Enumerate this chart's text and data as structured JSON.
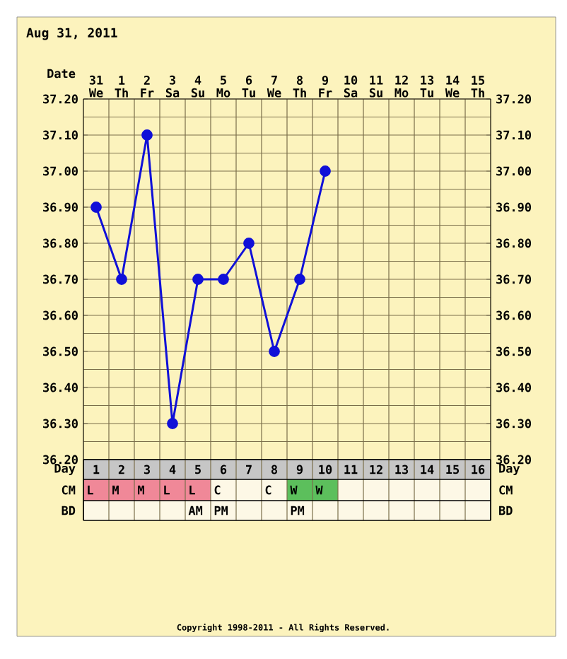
{
  "chart_data": [
    {
      "type": "line",
      "title": "Aug 31, 2011",
      "xlabel": "Date",
      "categories": [
        "31 We",
        "1 Th",
        "2 Fr",
        "3 Sa",
        "4 Su",
        "5 Mo",
        "6 Tu",
        "7 We",
        "8 Th",
        "9 Fr",
        "10 Sa",
        "11 Su",
        "12 Mo",
        "13 Tu",
        "14 We",
        "15 Th"
      ],
      "series": [
        {
          "color": "#1010d8",
          "values": [
            36.9,
            36.7,
            37.1,
            36.3,
            36.7,
            36.7,
            36.8,
            36.5,
            36.7,
            37.0,
            null,
            null,
            null,
            null,
            null,
            null
          ]
        }
      ],
      "ylim": [
        36.2,
        37.2
      ],
      "yticks": [
        {
          "value": 36.2,
          "label": "36.20"
        },
        {
          "value": 36.3,
          "label": "36.30"
        },
        {
          "value": 36.4,
          "label": "36.40"
        },
        {
          "value": 36.5,
          "label": "36.50"
        },
        {
          "value": 36.6,
          "label": "36.60"
        },
        {
          "value": 36.7,
          "label": "36.70"
        },
        {
          "value": 36.8,
          "label": "36.80"
        },
        {
          "value": 36.9,
          "label": "36.90"
        },
        {
          "value": 37.0,
          "label": "37.00"
        },
        {
          "value": 37.1,
          "label": "37.10"
        },
        {
          "value": 37.2,
          "label": "37.20"
        }
      ],
      "y2lim": [
        36.2,
        37.2
      ],
      "y2ticks": [
        {
          "value": 36.2,
          "label": "36.20"
        },
        {
          "value": 36.3,
          "label": "36.30"
        },
        {
          "value": 36.4,
          "label": "36.40"
        },
        {
          "value": 36.5,
          "label": "36.50"
        },
        {
          "value": 36.6,
          "label": "36.60"
        },
        {
          "value": 36.7,
          "label": "36.70"
        },
        {
          "value": 36.8,
          "label": "36.80"
        },
        {
          "value": 36.9,
          "label": "36.90"
        },
        {
          "value": 37.0,
          "label": "37.00"
        },
        {
          "value": 37.1,
          "label": "37.10"
        },
        {
          "value": 37.2,
          "label": "37.20"
        }
      ],
      "grid": true,
      "marker": "circle",
      "line_style": "solid"
    },
    {
      "type": "heatmap",
      "xlabel": "Day",
      "categories": [
        "1",
        "2",
        "3",
        "4",
        "5",
        "6",
        "7",
        "8",
        "9",
        "10",
        "11",
        "12",
        "13",
        "14",
        "15",
        "16"
      ],
      "y_categories": [
        "CM",
        "BD"
      ],
      "cells": [
        [
          null,
          null,
          null,
          null,
          null,
          null,
          null,
          null,
          null,
          null,
          null,
          null,
          null,
          null,
          null,
          null
        ],
        [
          null,
          null,
          null,
          null,
          null,
          null,
          null,
          null,
          null,
          null,
          null,
          null,
          null,
          null,
          null,
          null
        ]
      ],
      "cell_labels": [
        [
          "L",
          "M",
          "M",
          "L",
          "L",
          "C",
          null,
          "C",
          "W",
          "W",
          null,
          null,
          null,
          null,
          null,
          null
        ],
        [
          null,
          null,
          null,
          null,
          "AM",
          "PM",
          null,
          null,
          "PM",
          null,
          null,
          null,
          null,
          null,
          null,
          null
        ]
      ],
      "colors": [
        [
          "#f08898",
          "#f08898",
          "#f08898",
          "#f08898",
          "#f08898",
          "#fdf8e6",
          "#fdf8e6",
          "#fdf8e6",
          "#5cbf5c",
          "#5cbf5c",
          "#fdf8e6",
          "#fdf8e6",
          "#fdf8e6",
          "#fdf8e6",
          "#fdf8e6",
          "#fdf8e6"
        ],
        [
          "#fdf8e6",
          "#fdf8e6",
          "#fdf8e6",
          "#fdf8e6",
          "#fdf8e6",
          "#fdf8e6",
          "#fdf8e6",
          "#fdf8e6",
          "#fdf8e6",
          "#fdf8e6",
          "#fdf8e6",
          "#fdf8e6",
          "#fdf8e6",
          "#fdf8e6",
          "#fdf8e6",
          "#fdf8e6"
        ]
      ],
      "annotations": [
        "Copyright 1998-2011 - All Rights Reserved."
      ]
    }
  ]
}
